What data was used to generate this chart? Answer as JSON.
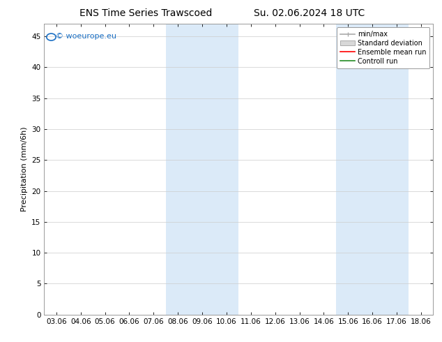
{
  "title": "ENS Time Series Trawscoed",
  "subtitle": "Su. 02.06.2024 18 UTC",
  "xlabel": "",
  "ylabel": "Precipitation (mm/6h)",
  "ylim": [
    0,
    47
  ],
  "yticks": [
    0,
    5,
    10,
    15,
    20,
    25,
    30,
    35,
    40,
    45
  ],
  "xtick_labels": [
    "03.06",
    "04.06",
    "05.06",
    "06.06",
    "07.06",
    "08.06",
    "09.06",
    "10.06",
    "11.06",
    "12.06",
    "13.06",
    "14.06",
    "15.06",
    "16.06",
    "17.06",
    "18.06"
  ],
  "xtick_positions": [
    0,
    1,
    2,
    3,
    4,
    5,
    6,
    7,
    8,
    9,
    10,
    11,
    12,
    13,
    14,
    15
  ],
  "shade_ranges": [
    [
      4.5,
      7.5
    ],
    [
      11.5,
      14.5
    ]
  ],
  "shade_color": "#dbeaf8",
  "background_color": "#ffffff",
  "plot_bg_color": "#ffffff",
  "grid_color": "#cccccc",
  "legend_labels": [
    "min/max",
    "Standard deviation",
    "Ensemble mean run",
    "Controll run"
  ],
  "legend_colors": [
    "#999999",
    "#cccccc",
    "#ff0000",
    "#228B22"
  ],
  "watermark_text": "© woeurope.eu",
  "watermark_color": "#1a6fc4",
  "title_fontsize": 10,
  "axis_fontsize": 8,
  "tick_fontsize": 7.5,
  "legend_fontsize": 7
}
